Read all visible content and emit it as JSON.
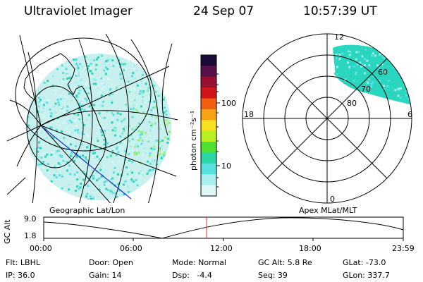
{
  "header": {
    "title": "Ultraviolet Imager",
    "date": "24 Sep 07",
    "time": "10:57:39 UT"
  },
  "maps": {
    "left_caption": "Geographic Lat/Lon",
    "right_caption": "Apex MLat/MLT"
  },
  "colorbar": {
    "unit_label": "photon cm⁻²s⁻¹",
    "ticks": [
      "100",
      "10"
    ],
    "colors": [
      "#1a0a3a",
      "#5a1048",
      "#9a1030",
      "#d0141a",
      "#f06010",
      "#f7a315",
      "#f7e020",
      "#b8f020",
      "#50e030",
      "#2ad6a8",
      "#58e0e0",
      "#a8eeee",
      "#e0f6f6"
    ]
  },
  "polar": {
    "mlt_labels": {
      "top": "12",
      "right": "6",
      "bottom": "0",
      "left": "18"
    },
    "lat_labels": [
      "60",
      "70",
      "80"
    ]
  },
  "altitude_plot": {
    "axis_label": "GC Alt",
    "y_ticks": [
      "9.0",
      "1.8"
    ],
    "x_ticks": [
      "00:00",
      "06:00",
      "12:00",
      "18:00",
      "23:59"
    ],
    "marker_color": "#e03030"
  },
  "status": {
    "flt": "Flt: LBHL",
    "ip": "IP: 36.0",
    "door": "Door: Open",
    "gain": "Gain: 14",
    "mode": "Mode: Normal",
    "dsp": "Dsp:   -4.4",
    "gc_alt": "GC Alt: 5.8 Re",
    "seq": "Seq: 39",
    "glat": "GLat: -73.0",
    "glon": "GLon: 337.7"
  },
  "emission_colors": [
    "#2ad6b8",
    "#58e0e0",
    "#a8eeee",
    "#d8f4f4",
    "#80e8c8",
    "#9ef26a"
  ]
}
